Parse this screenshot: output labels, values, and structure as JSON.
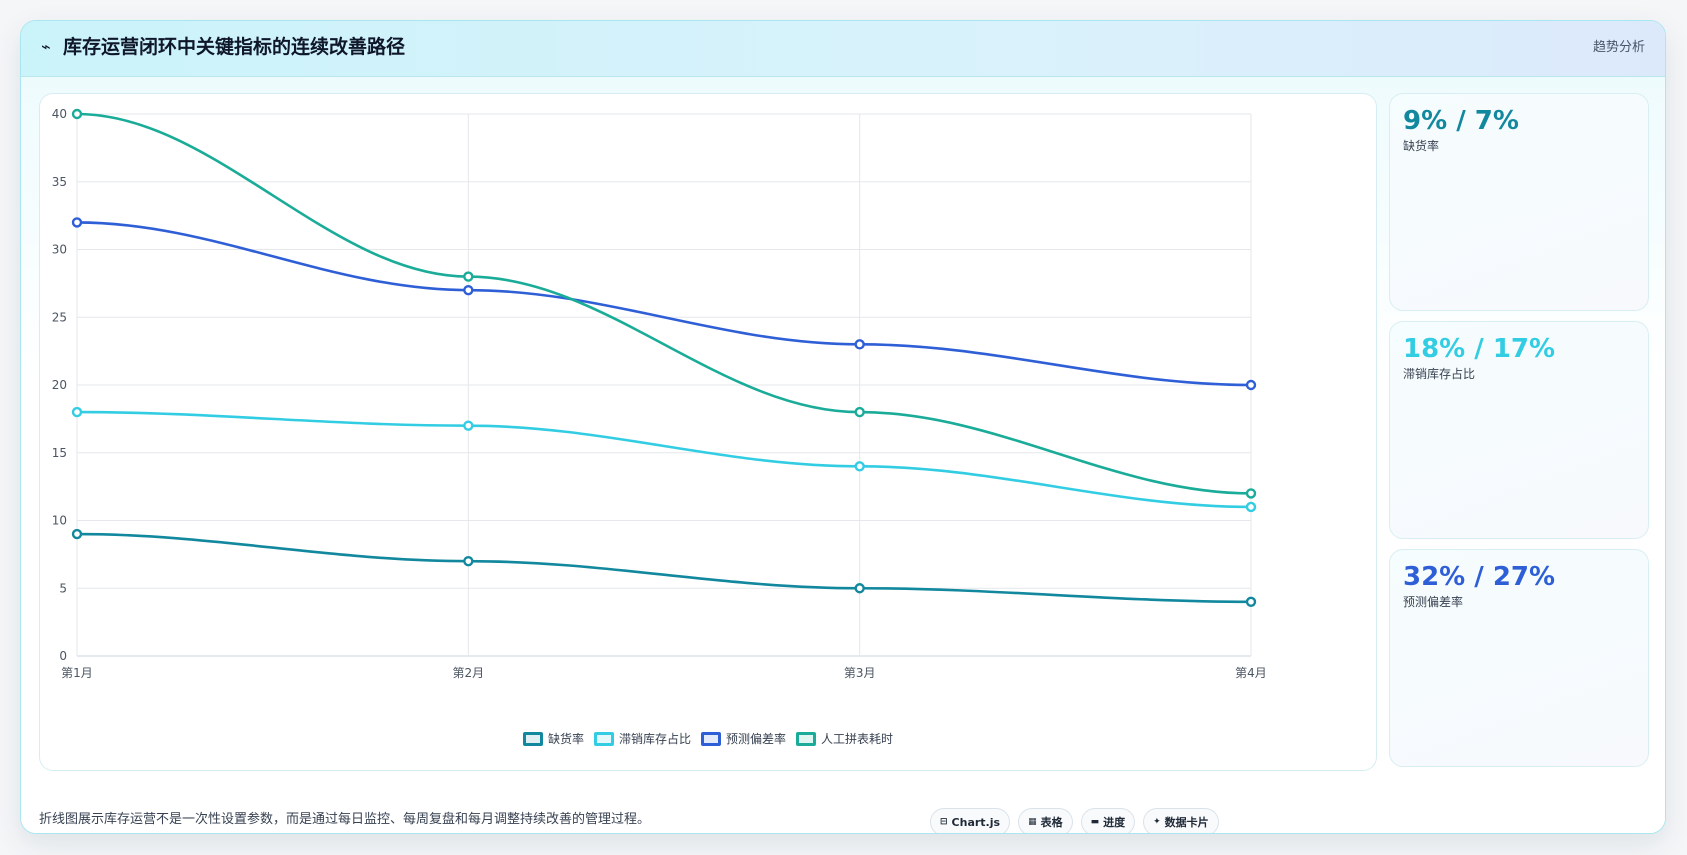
{
  "header": {
    "icon": "pulse-icon",
    "title": "库存运营闭环中关键指标的连续改善路径",
    "tag": "趋势分析"
  },
  "colors": {
    "teal_dark": "#12889e",
    "cyan": "#33cde3",
    "blue": "#2f5fd6",
    "green_teal": "#1aac98"
  },
  "chart_data": {
    "type": "line",
    "categories": [
      "第1月",
      "第2月",
      "第3月",
      "第4月"
    ],
    "ylim": [
      0,
      40
    ],
    "yticks": [
      0,
      5,
      10,
      15,
      20,
      25,
      30,
      35,
      40
    ],
    "grid": true,
    "legend_position": "bottom",
    "series": [
      {
        "name": "缺货率",
        "color": "#12889e",
        "values": [
          9,
          7,
          5,
          4
        ]
      },
      {
        "name": "滞销库存占比",
        "color": "#33cde3",
        "values": [
          18,
          17,
          14,
          11
        ]
      },
      {
        "name": "预测偏差率",
        "color": "#2f5fd6",
        "values": [
          32,
          27,
          23,
          20
        ]
      },
      {
        "name": "人工拼表耗时",
        "color": "#1aac98",
        "values": [
          40,
          28,
          18,
          12
        ]
      }
    ]
  },
  "stats": [
    {
      "value": "9% / 7%",
      "label": "缺货率",
      "color": "#12889e"
    },
    {
      "value": "18% / 17%",
      "label": "滞销库存占比",
      "color": "#33cde3"
    },
    {
      "value": "32% / 27%",
      "label": "预测偏差率",
      "color": "#2f5fd6"
    }
  ],
  "footer": {
    "note": "折线图展示库存运营不是一次性设置参数，而是通过每日监控、每周复盘和每月调整持续改善的管理过程。",
    "chips": [
      {
        "icon": "⊟",
        "label": "Chart.js"
      },
      {
        "icon": "▦",
        "label": "表格"
      },
      {
        "icon": "▬",
        "label": "进度"
      },
      {
        "icon": "✦",
        "label": "数据卡片"
      }
    ]
  }
}
